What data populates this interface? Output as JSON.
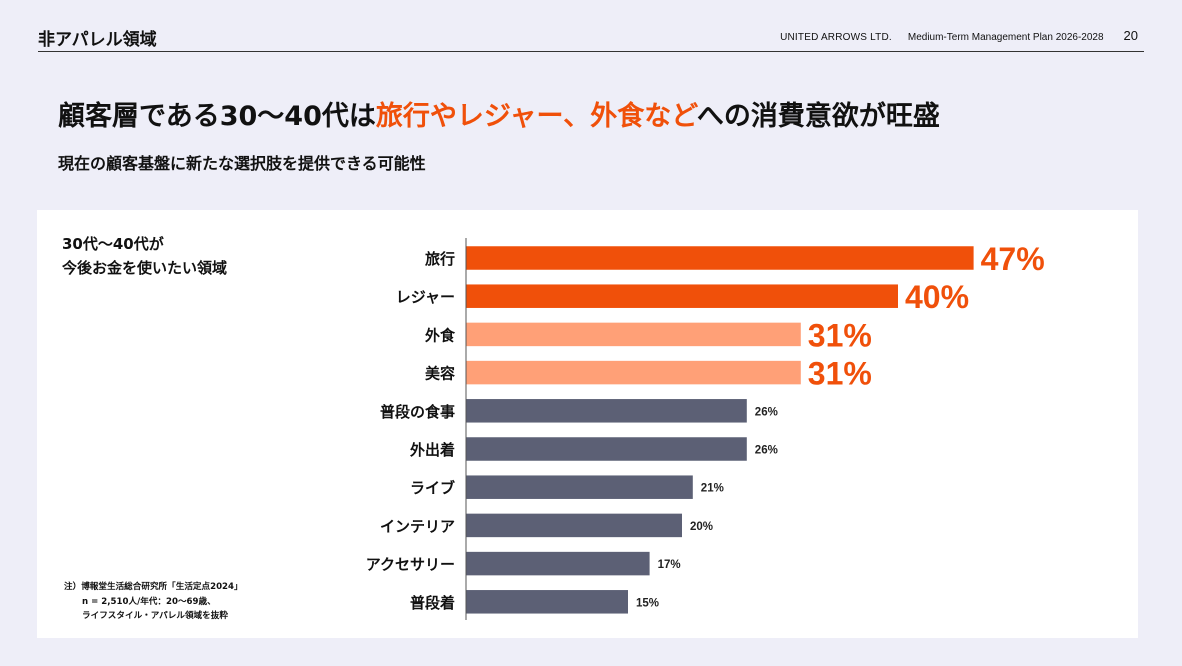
{
  "header": {
    "section_title": "非アパレル領域",
    "company": "UNITED ARROWS LTD.",
    "plan": "Medium-Term Management Plan 2026-2028",
    "page_number": "20"
  },
  "headline": {
    "part1": "顧客層である30〜40代は",
    "highlight": "旅行やレジャー、外食など",
    "part2": "への消費意欲が旺盛"
  },
  "subheadline": "現在の顧客基盤に新たな選択肢を提供できる可能性",
  "chart_label": {
    "line1": "30代〜40代が",
    "line2": "今後お金を使いたい領域"
  },
  "note": {
    "line1": "注）博報堂生活総合研究所「生活定点2024」",
    "line2": "n = 2,510人/年代：20〜69歳、",
    "line3": "ライフスタイル・アパレル領域を抜粋"
  },
  "colors": {
    "accent": "#f0500a",
    "accent_light": "#ffa077",
    "bar_gray": "#5c6075",
    "background": "#eeeef8",
    "panel": "#ffffff"
  },
  "chart_data": {
    "type": "bar",
    "orientation": "horizontal",
    "categories": [
      "旅行",
      "レジャー",
      "外食",
      "美容",
      "普段の食事",
      "外出着",
      "ライブ",
      "インテリア",
      "アクセサリー",
      "普段着"
    ],
    "values": [
      47,
      40,
      31,
      31,
      26,
      26,
      21,
      20,
      17,
      15
    ],
    "value_labels": [
      "47%",
      "40%",
      "31%",
      "31%",
      "26%",
      "26%",
      "21%",
      "20%",
      "17%",
      "15%"
    ],
    "unit": "%",
    "bar_color_groups": [
      "accent",
      "accent",
      "accent_light",
      "accent_light",
      "gray",
      "gray",
      "gray",
      "gray",
      "gray",
      "gray"
    ],
    "title": "",
    "xlabel": "",
    "ylabel": "",
    "xlim": [
      0,
      50
    ],
    "grid": false,
    "legend": "none"
  }
}
